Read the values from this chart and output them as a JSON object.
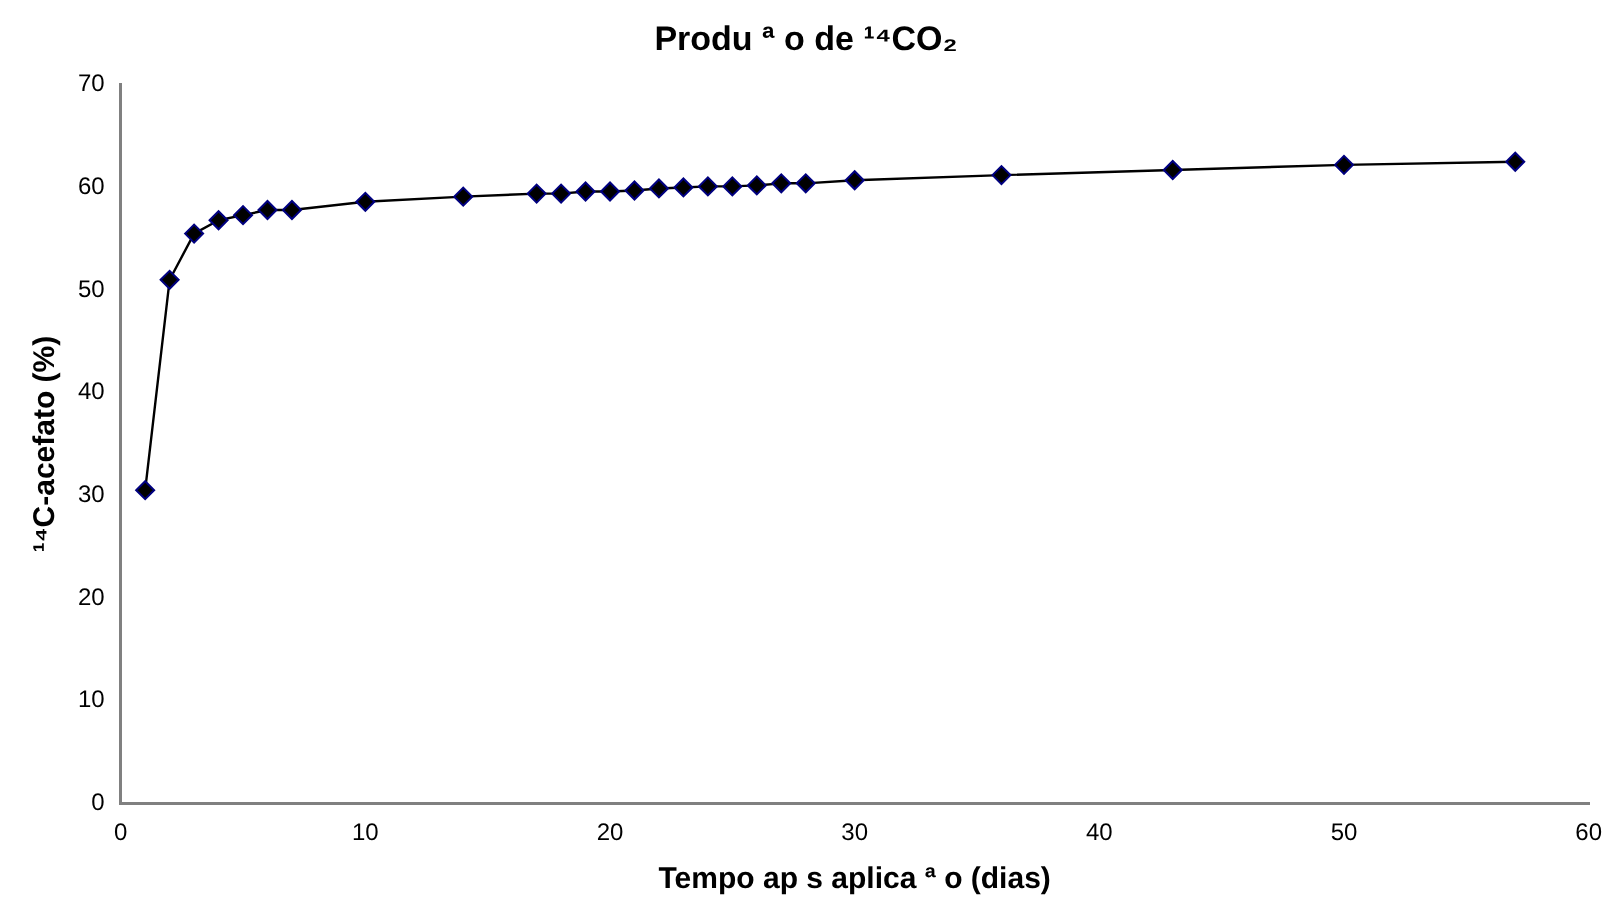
{
  "chart_data": {
    "type": "line",
    "title": "Produ ª o de ¹⁴CO₂",
    "xlabel": "Tempo ap s aplica ª o (dias)",
    "ylabel": "¹⁴C-acefato (%)",
    "x": [
      1,
      2,
      3,
      4,
      5,
      6,
      7,
      10,
      14,
      17,
      18,
      19,
      20,
      21,
      22,
      23,
      24,
      25,
      26,
      27,
      28,
      30,
      36,
      43,
      50,
      57
    ],
    "series": [
      {
        "color": "#000080",
        "values": [
          30.5,
          51,
          55.5,
          56.8,
          57.3,
          57.8,
          57.8,
          58.6,
          59.1,
          59.4,
          59.4,
          59.6,
          59.6,
          59.7,
          59.9,
          60,
          60.1,
          60.1,
          60.2,
          60.4,
          60.4,
          60.7,
          61.2,
          61.7,
          62.2,
          62.5
        ]
      }
    ],
    "xlim": [
      0,
      60
    ],
    "xticks": [
      0,
      10,
      20,
      30,
      40,
      50,
      60
    ],
    "ylim": [
      0,
      70
    ],
    "yticks": [
      0,
      10,
      20,
      30,
      40,
      50,
      60,
      70
    ],
    "grid": false,
    "legend": false,
    "marker": "diamond",
    "line_style": "solid"
  }
}
